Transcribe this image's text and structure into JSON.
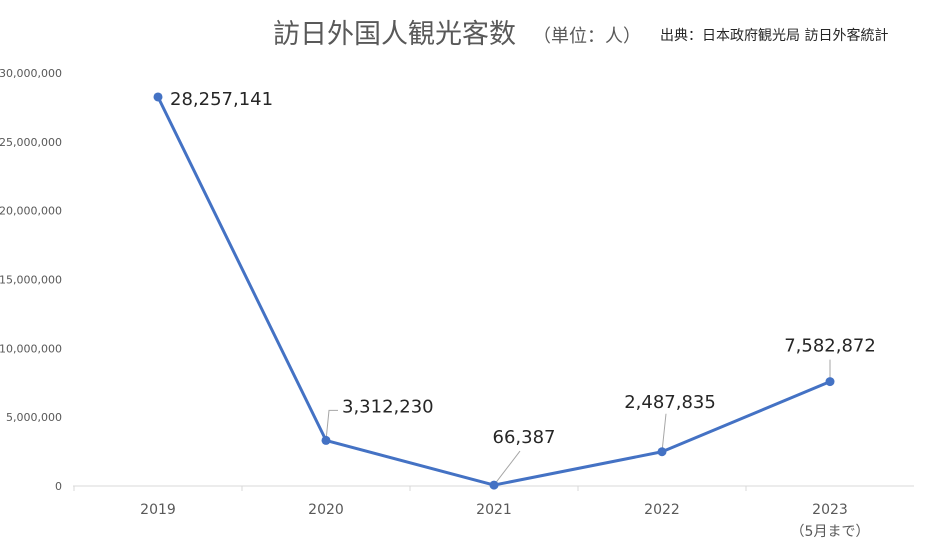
{
  "chart_data": {
    "type": "line",
    "title": "訪日外国人観光客数",
    "unit_label": "（単位：人）",
    "source": "出典：日本政府観光局 訪日外客統計",
    "categories": [
      "2019",
      "2020",
      "2021",
      "2022",
      "2023"
    ],
    "category_notes": [
      "",
      "",
      "",
      "",
      "（5月まで）"
    ],
    "series": [
      {
        "values": [
          28257141,
          3312230,
          66387,
          2487835,
          7582872
        ],
        "value_labels": [
          "28,257,141",
          "3,312,230",
          "66,387",
          "2,487,835",
          "7,582,872"
        ],
        "color": "#4472c4"
      }
    ],
    "ylim": [
      0,
      30000000
    ],
    "yticks": [
      {
        "value": 0,
        "label": "0"
      },
      {
        "value": 5000000,
        "label": "5,000,000"
      },
      {
        "value": 10000000,
        "label": "10,000,000"
      },
      {
        "value": 15000000,
        "label": "15,000,000"
      },
      {
        "value": 20000000,
        "label": "20,000,000"
      },
      {
        "value": 25000000,
        "label": "25,000,000"
      },
      {
        "value": 30000000,
        "label": "30,000,000"
      }
    ],
    "grid": false,
    "legend": "none",
    "axis_color": "#d9d9d9"
  }
}
